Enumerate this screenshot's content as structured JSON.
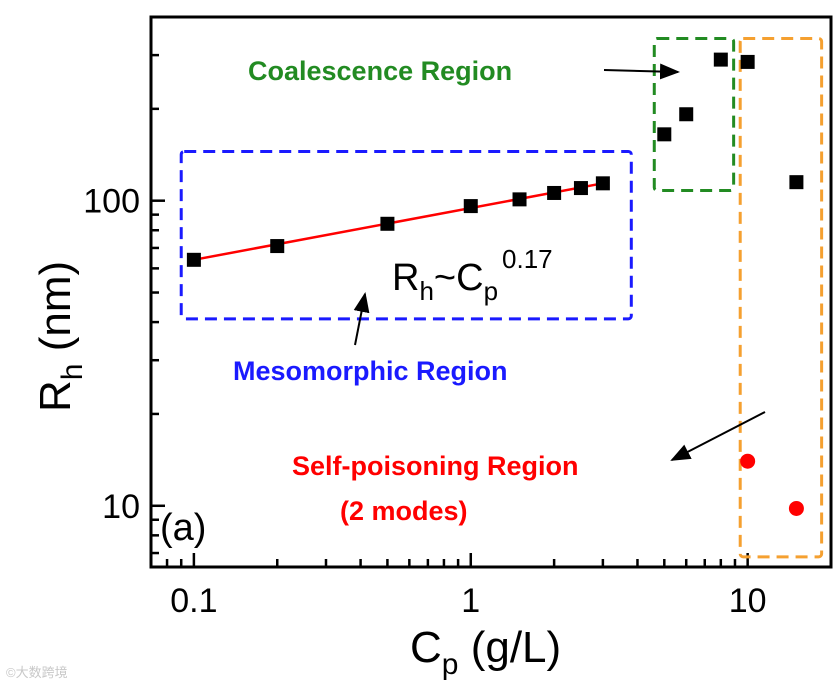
{
  "chart_data": {
    "type": "scatter",
    "panel_label": "(a)",
    "xlabel": {
      "main": "C",
      "sub": "p",
      "unit": " (g/L)"
    },
    "ylabel": {
      "main": "R",
      "sub": "h",
      "unit": " (nm)"
    },
    "x_scale": "log",
    "y_scale": "log",
    "xlim": [
      0.07,
      20
    ],
    "ylim": [
      6.3,
      400
    ],
    "x_ticks": [
      0.1,
      1,
      10
    ],
    "x_tick_labels": [
      "0.1",
      "1",
      "10"
    ],
    "y_ticks": [
      10,
      100
    ],
    "y_tick_labels": [
      "10",
      "100"
    ],
    "grid": false,
    "series": [
      {
        "color": "#000000",
        "marker": "square",
        "points": [
          [
            0.1,
            64
          ],
          [
            0.2,
            71
          ],
          [
            0.5,
            84
          ],
          [
            1,
            96
          ],
          [
            1.5,
            101
          ],
          [
            2,
            106
          ],
          [
            2.5,
            110
          ],
          [
            3,
            114
          ],
          [
            5,
            165
          ],
          [
            6,
            192
          ],
          [
            8,
            290
          ],
          [
            10,
            285
          ],
          [
            15,
            115
          ]
        ]
      },
      {
        "color": "#ff0000",
        "marker": "circle",
        "points": [
          [
            10,
            14
          ],
          [
            15,
            9.8
          ]
        ]
      }
    ],
    "fit_line": {
      "color": "#ff0000",
      "x": [
        0.1,
        3
      ],
      "y": [
        64,
        114
      ]
    },
    "equation": {
      "base": "R",
      "sub1": "h",
      "tilde": "~C",
      "sub2": "p",
      "exp": "0.17"
    },
    "regions": [
      {
        "label": "Mesomorphic Region",
        "color": "#1a1aff",
        "x": [
          0.09,
          3.8
        ],
        "y": [
          41,
          145
        ]
      },
      {
        "label": "Coalescence Region",
        "color": "#228b22",
        "x": [
          4.6,
          8.9
        ],
        "y": [
          108,
          340
        ]
      },
      {
        "label": "Self-poisoning Region",
        "label2": "(2 modes)",
        "color": "#ff0000",
        "box_color": "#f5a030",
        "x": [
          9.4,
          18.5
        ],
        "y": [
          6.8,
          340
        ]
      }
    ]
  }
}
